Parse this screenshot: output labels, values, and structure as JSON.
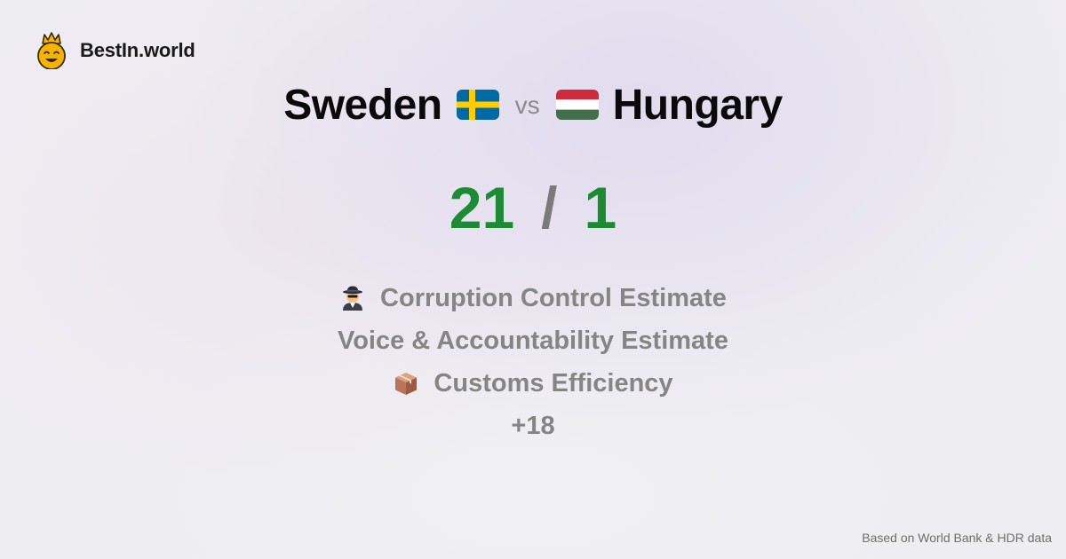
{
  "brand": {
    "name": "BestIn.world",
    "icon": "crowned-smiley-icon",
    "icon_color": "#f5b400"
  },
  "comparison": {
    "left_country": "Sweden",
    "left_flag": "sweden-flag-icon",
    "vs_label": "vs",
    "right_country": "Hungary",
    "right_flag": "hungary-flag-icon"
  },
  "score": {
    "left": "21",
    "separator": "/",
    "right": "1",
    "score_color": "#1d8a34"
  },
  "categories": [
    {
      "label": "Corruption Control Estimate",
      "icon": "detective-icon"
    },
    {
      "label": "Voice & Accountability Estimate",
      "icon": ""
    },
    {
      "label": "Customs Efficiency",
      "icon": "package-icon"
    }
  ],
  "more": "+18",
  "footer": "Based on World Bank & HDR data"
}
